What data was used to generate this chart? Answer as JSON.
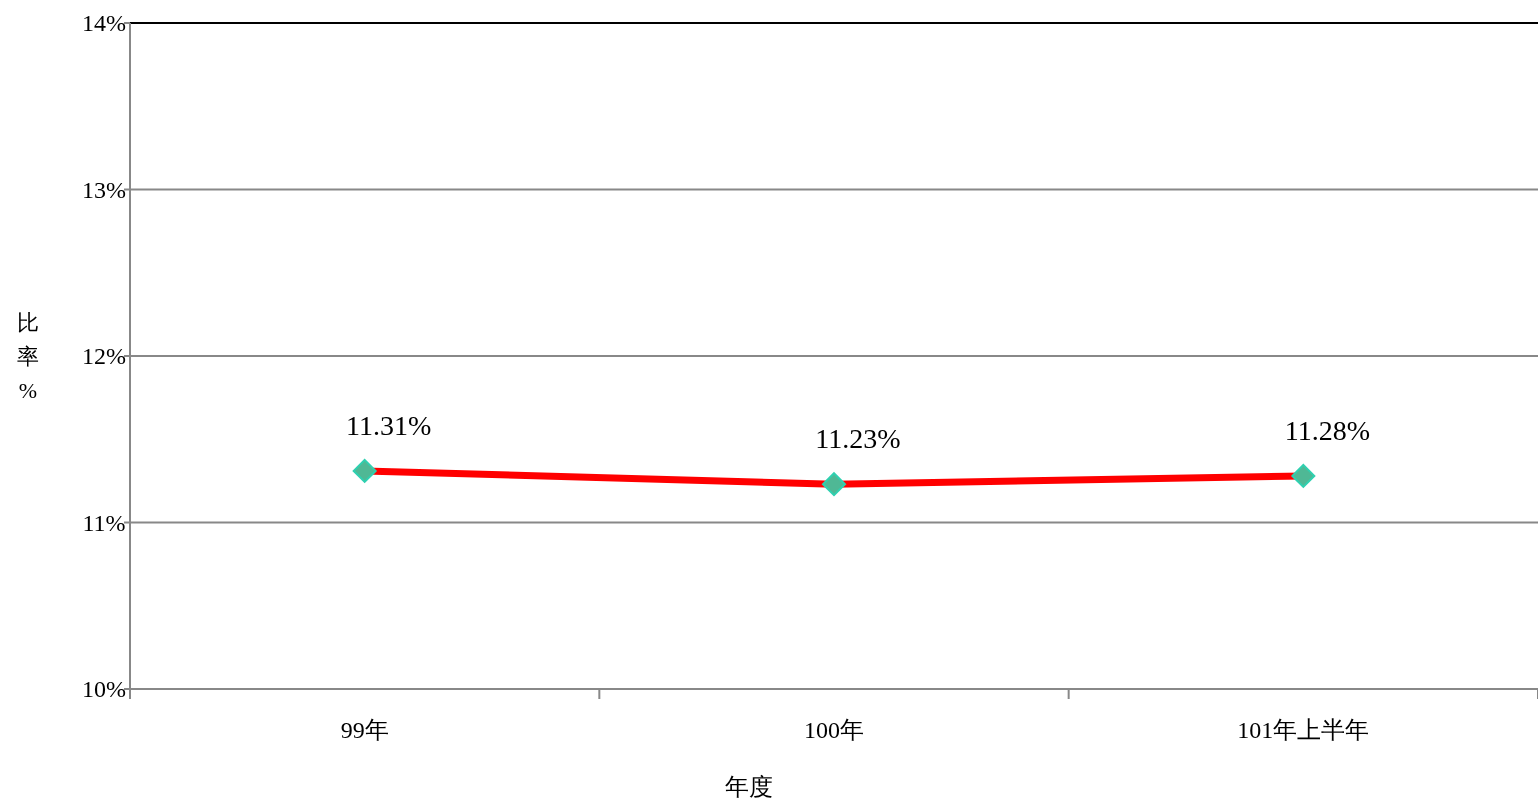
{
  "chart_data": {
    "type": "line",
    "xlabel": "年度",
    "ylabel": "比率%",
    "categories": [
      "99年",
      "100年",
      "101年上半年"
    ],
    "series": [
      {
        "color": "#ff0000",
        "values": [
          11.31,
          11.23,
          11.28
        ],
        "value_labels": [
          "11.31%",
          "11.23%",
          "11.28%"
        ]
      }
    ],
    "ylim": [
      10,
      14
    ],
    "yticks": [
      {
        "value": 10,
        "label": "10%"
      },
      {
        "value": 11,
        "label": "11%"
      },
      {
        "value": 12,
        "label": "12%"
      },
      {
        "value": 13,
        "label": "13%"
      },
      {
        "value": 14,
        "label": "14%"
      }
    ],
    "grid": "y",
    "marker": "diamond",
    "line_style": "solid"
  }
}
